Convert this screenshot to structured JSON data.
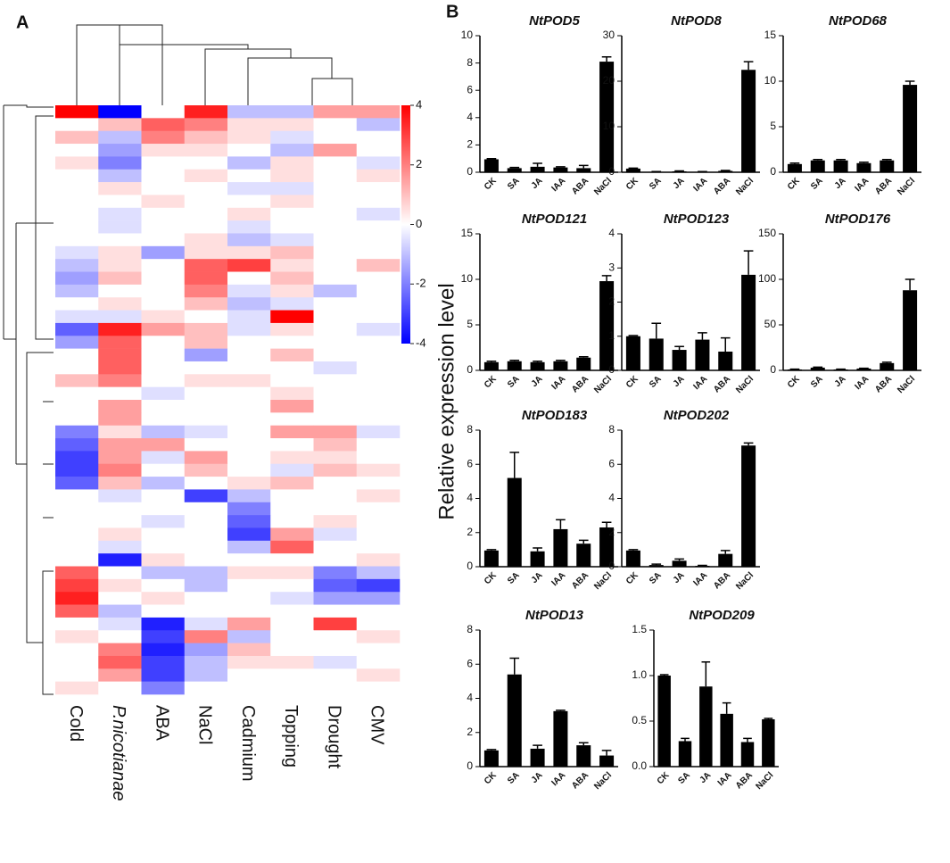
{
  "panel_labels": [
    "A",
    "B"
  ],
  "ylabel": "Relative expression level",
  "chart_data": [
    {
      "type": "heatmap",
      "columns": [
        "Cold",
        "P.nicotianae",
        "ABA",
        "NaCl",
        "Cadmium",
        "Topping",
        "Drought",
        "CMV"
      ],
      "colorbar": {
        "min": -4,
        "max": 4,
        "ticks": [
          4,
          2,
          0,
          -2,
          -4
        ]
      },
      "values": [
        [
          4,
          -4,
          0,
          3.5,
          -1,
          -1,
          1.5,
          1.5
        ],
        [
          0,
          1,
          2.5,
          2,
          0.5,
          0.5,
          0,
          -1
        ],
        [
          1,
          -1,
          2,
          1,
          0.5,
          -0.5,
          0,
          0
        ],
        [
          0,
          -1.5,
          0.5,
          0.5,
          0,
          -1,
          1.5,
          0
        ],
        [
          0.5,
          -2,
          0,
          0,
          -1,
          0.5,
          0,
          -0.5
        ],
        [
          0,
          -1,
          0,
          0.5,
          0,
          0.5,
          0,
          0.5
        ],
        [
          0,
          0.5,
          0,
          0,
          -0.5,
          -0.5,
          0,
          0
        ],
        [
          0,
          0,
          0.5,
          0,
          0,
          0.5,
          0,
          0
        ],
        [
          0,
          -0.5,
          0,
          0,
          0.5,
          0,
          0,
          -0.5
        ],
        [
          0,
          -0.5,
          0,
          0,
          -0.5,
          0,
          0,
          0
        ],
        [
          0,
          0,
          0,
          0.5,
          -1,
          -0.5,
          0,
          0
        ],
        [
          -0.5,
          0.5,
          -1.5,
          0.5,
          0.5,
          1,
          0,
          0
        ],
        [
          -1,
          0.5,
          0,
          2.5,
          3,
          0.5,
          0,
          1
        ],
        [
          -1.5,
          1,
          0,
          2.5,
          0,
          1,
          0,
          0
        ],
        [
          -1,
          0,
          0,
          2,
          -0.5,
          0.5,
          -1,
          0
        ],
        [
          0,
          0.5,
          0,
          1,
          -1,
          -0.5,
          0,
          0
        ],
        [
          -0.5,
          -0.5,
          0.5,
          0,
          -0.5,
          4,
          0,
          0
        ],
        [
          -2.5,
          3.5,
          1.5,
          1,
          -0.5,
          0.5,
          0,
          -0.5
        ],
        [
          -1.5,
          2.5,
          0,
          1,
          0,
          0,
          0,
          0
        ],
        [
          0,
          2.5,
          0,
          -1.5,
          0,
          1,
          0,
          0
        ],
        [
          0,
          2.5,
          0,
          0,
          0,
          0,
          -0.5,
          0
        ],
        [
          1,
          2,
          0,
          0.5,
          0.5,
          0,
          0,
          0
        ],
        [
          0,
          0,
          -0.5,
          0,
          0,
          0.5,
          0,
          0
        ],
        [
          0,
          1.5,
          0,
          0,
          0,
          1.5,
          0,
          0
        ],
        [
          0,
          1.5,
          0,
          0,
          0,
          0,
          0,
          0
        ],
        [
          -2,
          0.5,
          -1,
          -0.5,
          0,
          1.5,
          1.5,
          -0.5
        ],
        [
          -2.5,
          1.5,
          1.5,
          0,
          0,
          0,
          1,
          0
        ],
        [
          -3,
          1.5,
          -0.5,
          1.5,
          0,
          0.5,
          0.5,
          0
        ],
        [
          -3,
          2,
          0,
          1,
          0,
          -0.5,
          1,
          0.5
        ],
        [
          -2.5,
          1,
          -1,
          0,
          0.5,
          1,
          0,
          0
        ],
        [
          0,
          -0.5,
          0,
          -3,
          -1,
          0,
          0,
          0.5
        ],
        [
          0,
          0,
          0,
          0,
          -2,
          0,
          0,
          0
        ],
        [
          0,
          0,
          -0.5,
          0,
          -2.5,
          0,
          0.5,
          0
        ],
        [
          0,
          0.5,
          0,
          0,
          -3,
          1.5,
          -0.5,
          0
        ],
        [
          0,
          -0.5,
          0,
          0,
          -1,
          2.5,
          0,
          0
        ],
        [
          0,
          -3.5,
          0.5,
          0,
          0,
          0,
          0,
          0.5
        ],
        [
          2.5,
          0,
          -1,
          -1,
          0.5,
          0.5,
          -2,
          -1
        ],
        [
          3,
          0.5,
          0,
          -1,
          0,
          0,
          -2.5,
          -3
        ],
        [
          3.5,
          0,
          0.5,
          0,
          0,
          -0.5,
          -1.5,
          -1.5
        ],
        [
          2.5,
          -1,
          0,
          0,
          0,
          0,
          0,
          0
        ],
        [
          0,
          -0.5,
          -3.5,
          -0.5,
          1.5,
          0,
          3,
          0
        ],
        [
          0.5,
          0,
          -3,
          2,
          -1,
          0,
          0,
          0.5
        ],
        [
          0,
          2,
          -3.5,
          -1.5,
          1,
          0,
          0,
          0
        ],
        [
          0,
          2.5,
          -3,
          -1,
          0.5,
          0.5,
          -0.5,
          0
        ],
        [
          0,
          1.5,
          -3,
          -1,
          0,
          0,
          0,
          0.5
        ],
        [
          0.5,
          0,
          -2,
          0,
          0,
          0,
          0,
          0
        ]
      ]
    },
    {
      "type": "bar",
      "title": "NtPOD5",
      "categories": [
        "CK",
        "SA",
        "JA",
        "IAA",
        "ABA",
        "NaCl"
      ],
      "values": [
        0.95,
        0.3,
        0.4,
        0.35,
        0.3,
        8.1
      ],
      "errors": [
        0.05,
        0.05,
        0.25,
        0.05,
        0.2,
        0.35
      ],
      "ylim": [
        0,
        10
      ],
      "yticks": [
        0,
        2,
        4,
        6,
        8,
        10
      ],
      "color": "#000000"
    },
    {
      "type": "bar",
      "title": "NtPOD8",
      "categories": [
        "CK",
        "SA",
        "JA",
        "IAA",
        "ABA",
        "NaCl"
      ],
      "values": [
        0.8,
        0.1,
        0.2,
        0.1,
        0.3,
        22.5
      ],
      "errors": [
        0.1,
        0.05,
        0.1,
        0.05,
        0.1,
        1.8
      ],
      "ylim": [
        0,
        30
      ],
      "yticks": [
        0,
        10,
        20,
        30
      ],
      "color": "#000000"
    },
    {
      "type": "bar",
      "title": "NtPOD68",
      "categories": [
        "CK",
        "SA",
        "JA",
        "IAA",
        "ABA",
        "NaCl"
      ],
      "values": [
        0.9,
        1.3,
        1.3,
        1.0,
        1.3,
        9.6
      ],
      "errors": [
        0.1,
        0.1,
        0.1,
        0.1,
        0.1,
        0.4
      ],
      "ylim": [
        0,
        15
      ],
      "yticks": [
        0,
        5,
        10,
        15
      ],
      "color": "#000000"
    },
    {
      "type": "bar",
      "title": "NtPOD121",
      "categories": [
        "CK",
        "SA",
        "JA",
        "IAA",
        "ABA",
        "NaCl"
      ],
      "values": [
        0.9,
        1.0,
        0.9,
        1.0,
        1.4,
        9.8
      ],
      "errors": [
        0.1,
        0.1,
        0.1,
        0.1,
        0.1,
        0.6
      ],
      "ylim": [
        0,
        15
      ],
      "yticks": [
        0,
        5,
        10,
        15
      ],
      "color": "#000000"
    },
    {
      "type": "bar",
      "title": "NtPOD123",
      "categories": [
        "CK",
        "SA",
        "JA",
        "IAA",
        "ABA",
        "NaCl"
      ],
      "values": [
        1.0,
        0.93,
        0.6,
        0.9,
        0.55,
        2.8
      ],
      "errors": [
        0.02,
        0.45,
        0.1,
        0.2,
        0.4,
        0.7
      ],
      "ylim": [
        0,
        4
      ],
      "yticks": [
        0,
        1,
        2,
        3,
        4
      ],
      "color": "#000000"
    },
    {
      "type": "bar",
      "title": "NtPOD176",
      "categories": [
        "CK",
        "SA",
        "JA",
        "IAA",
        "ABA",
        "NaCl"
      ],
      "values": [
        1,
        3,
        1,
        2,
        8,
        88
      ],
      "errors": [
        0.3,
        0.5,
        0.3,
        0.3,
        1,
        12
      ],
      "ylim": [
        0,
        150
      ],
      "yticks": [
        0,
        50,
        100,
        150
      ],
      "color": "#000000"
    },
    {
      "type": "bar",
      "title": "NtPOD183",
      "categories": [
        "CK",
        "SA",
        "JA",
        "IAA",
        "ABA",
        "NaCl"
      ],
      "values": [
        0.95,
        5.2,
        0.9,
        2.2,
        1.35,
        2.3
      ],
      "errors": [
        0.05,
        1.5,
        0.2,
        0.55,
        0.2,
        0.3
      ],
      "ylim": [
        0,
        8
      ],
      "yticks": [
        0,
        2,
        4,
        6,
        8
      ],
      "color": "#000000"
    },
    {
      "type": "bar",
      "title": "NtPOD202",
      "categories": [
        "CK",
        "SA",
        "JA",
        "IAA",
        "ABA",
        "NaCl"
      ],
      "values": [
        0.95,
        0.1,
        0.35,
        0.05,
        0.75,
        7.1
      ],
      "errors": [
        0.05,
        0.05,
        0.1,
        0.03,
        0.2,
        0.15
      ],
      "ylim": [
        0,
        8
      ],
      "yticks": [
        0,
        2,
        4,
        6,
        8
      ],
      "color": "#000000"
    },
    {
      "type": "bar",
      "title": "NtPOD13",
      "categories": [
        "CK",
        "SA",
        "JA",
        "IAA",
        "ABA",
        "NaCl"
      ],
      "values": [
        0.95,
        5.4,
        1.05,
        3.25,
        1.25,
        0.65
      ],
      "errors": [
        0.05,
        0.95,
        0.2,
        0.05,
        0.15,
        0.3
      ],
      "ylim": [
        0,
        8
      ],
      "yticks": [
        0,
        2,
        4,
        6,
        8
      ],
      "color": "#000000"
    },
    {
      "type": "bar",
      "title": "NtPOD209",
      "categories": [
        "CK",
        "SA",
        "JA",
        "IAA",
        "ABA",
        "NaCl"
      ],
      "values": [
        1.0,
        0.28,
        0.88,
        0.58,
        0.27,
        0.52
      ],
      "errors": [
        0.01,
        0.03,
        0.27,
        0.12,
        0.04,
        0.01
      ],
      "ylim": [
        0,
        1.5
      ],
      "yticks": [
        {
          "value": 0,
          "label": "0.0"
        },
        {
          "value": 0.5,
          "label": "0.5"
        },
        {
          "value": 1,
          "label": "1.0"
        },
        {
          "value": 1.5,
          "label": "1.5"
        }
      ],
      "color": "#000000"
    }
  ]
}
